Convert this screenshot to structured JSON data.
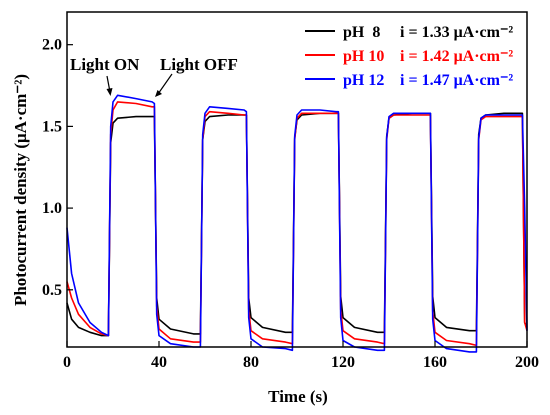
{
  "chart_data": {
    "type": "line",
    "xlabel": "Time (s)",
    "ylabel": "Photocurrent density (μA·cm⁻²)",
    "xlim": [
      0,
      200
    ],
    "ylim": [
      0.15,
      2.2
    ],
    "xticks": [
      0,
      40,
      80,
      120,
      160,
      200
    ],
    "yticks": [
      0.5,
      1.0,
      1.5,
      2.0
    ],
    "xtick_labels": [
      "0",
      "40",
      "80",
      "120",
      "160",
      "200"
    ],
    "ytick_labels": [
      "0.5",
      "1.0",
      "1.5",
      "2.0"
    ],
    "legend_position": "top-right",
    "grid": false,
    "annotations": [
      {
        "text": "Light ON",
        "x": 20,
        "y": 1.62
      },
      {
        "text": "Light OFF",
        "x": 38,
        "y": 1.6
      }
    ],
    "series": [
      {
        "name": "pH  8",
        "current_label": "i = 1.33 μA·cm⁻²",
        "color": "#000000",
        "x": [
          0,
          2,
          5,
          10,
          15,
          18,
          19,
          20,
          22,
          30,
          37,
          38,
          39,
          40,
          45,
          55,
          58,
          59,
          60,
          62,
          70,
          77,
          78,
          79,
          80,
          85,
          95,
          98,
          99,
          100,
          102,
          110,
          117,
          118,
          119,
          120,
          125,
          135,
          138,
          139,
          140,
          142,
          150,
          157,
          158,
          159,
          160,
          165,
          175,
          178,
          179,
          180,
          182,
          190,
          198,
          199,
          200
        ],
        "values": [
          0.42,
          0.32,
          0.27,
          0.24,
          0.22,
          0.22,
          1.4,
          1.52,
          1.55,
          1.56,
          1.56,
          1.56,
          0.45,
          0.32,
          0.26,
          0.23,
          0.23,
          1.42,
          1.53,
          1.56,
          1.57,
          1.57,
          1.57,
          0.45,
          0.33,
          0.27,
          0.24,
          0.24,
          1.43,
          1.54,
          1.57,
          1.58,
          1.58,
          1.58,
          0.46,
          0.33,
          0.27,
          0.24,
          0.24,
          1.44,
          1.55,
          1.57,
          1.58,
          1.58,
          1.58,
          0.46,
          0.33,
          0.27,
          0.25,
          0.25,
          1.45,
          1.55,
          1.57,
          1.58,
          1.58,
          0.3,
          0.27
        ]
      },
      {
        "name": "pH 10",
        "current_label": "i = 1.42 μA·cm⁻²",
        "color": "#ff0000",
        "x": [
          0,
          2,
          5,
          10,
          15,
          18,
          19,
          20,
          22,
          30,
          37,
          38,
          39,
          40,
          45,
          55,
          58,
          59,
          60,
          62,
          70,
          77,
          78,
          79,
          80,
          85,
          95,
          98,
          99,
          100,
          102,
          110,
          117,
          118,
          119,
          120,
          125,
          135,
          138,
          139,
          140,
          142,
          150,
          157,
          158,
          159,
          160,
          165,
          175,
          178,
          179,
          180,
          182,
          190,
          198,
          199,
          200
        ],
        "values": [
          0.55,
          0.45,
          0.35,
          0.27,
          0.23,
          0.22,
          1.45,
          1.6,
          1.65,
          1.64,
          1.62,
          1.62,
          0.4,
          0.26,
          0.2,
          0.18,
          0.18,
          1.42,
          1.56,
          1.59,
          1.58,
          1.57,
          1.57,
          0.38,
          0.25,
          0.2,
          0.18,
          0.17,
          1.42,
          1.55,
          1.58,
          1.58,
          1.58,
          1.58,
          0.38,
          0.25,
          0.2,
          0.18,
          0.17,
          1.42,
          1.55,
          1.57,
          1.57,
          1.57,
          1.57,
          0.37,
          0.24,
          0.19,
          0.17,
          0.16,
          1.42,
          1.54,
          1.56,
          1.56,
          1.56,
          0.3,
          0.25
        ]
      },
      {
        "name": "pH 12",
        "current_label": "i = 1.47 μA·cm⁻²",
        "color": "#0000ff",
        "x": [
          0,
          2,
          5,
          10,
          15,
          18,
          19,
          20,
          22,
          30,
          37,
          38,
          39,
          40,
          45,
          55,
          58,
          59,
          60,
          62,
          70,
          77,
          78,
          79,
          80,
          85,
          95,
          98,
          99,
          100,
          102,
          110,
          117,
          118,
          119,
          120,
          125,
          135,
          138,
          139,
          140,
          142,
          150,
          157,
          158,
          159,
          160,
          165,
          175,
          178,
          179,
          180,
          182,
          190,
          198,
          199,
          200
        ],
        "values": [
          0.88,
          0.6,
          0.42,
          0.3,
          0.24,
          0.22,
          1.5,
          1.65,
          1.69,
          1.67,
          1.65,
          1.64,
          0.35,
          0.22,
          0.17,
          0.15,
          0.15,
          1.45,
          1.58,
          1.62,
          1.61,
          1.6,
          1.59,
          0.33,
          0.2,
          0.15,
          0.14,
          0.13,
          1.44,
          1.57,
          1.6,
          1.6,
          1.59,
          1.59,
          0.33,
          0.19,
          0.15,
          0.13,
          0.13,
          1.43,
          1.56,
          1.58,
          1.58,
          1.58,
          1.58,
          0.32,
          0.19,
          0.14,
          0.12,
          0.12,
          1.43,
          1.55,
          1.57,
          1.57,
          1.57,
          1.0,
          0.25
        ]
      }
    ]
  }
}
